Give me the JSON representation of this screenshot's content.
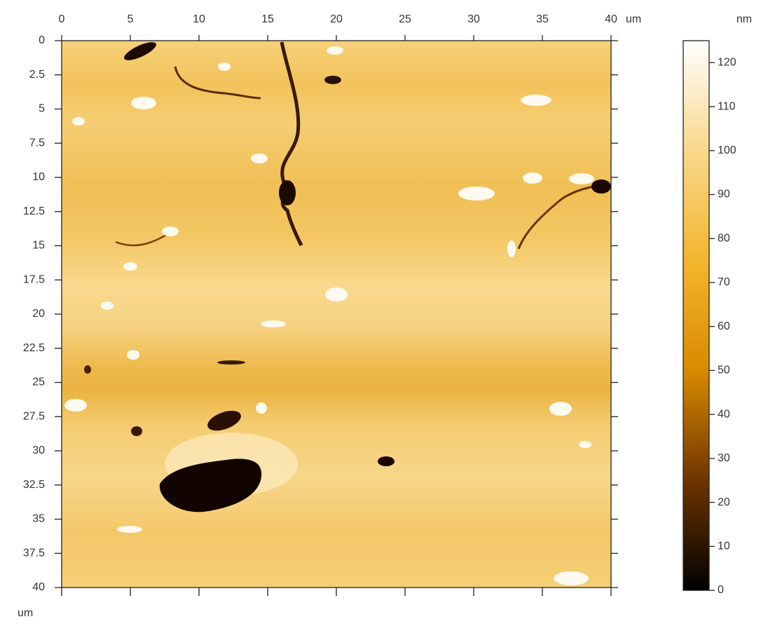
{
  "chart_data": {
    "type": "image",
    "x_unit": "um",
    "y_unit": "um",
    "xlim": [
      0,
      40
    ],
    "xticks": [
      0,
      5,
      10,
      15,
      20,
      25,
      30,
      35,
      40
    ],
    "ylim": [
      0,
      40
    ],
    "y_inverted": true,
    "yticks": [
      0,
      2.5,
      5,
      7.5,
      10,
      12.5,
      15,
      17.5,
      20,
      22.5,
      25,
      27.5,
      30,
      32.5,
      35,
      37.5,
      40
    ],
    "colorbar": {
      "label": "nm",
      "lim": [
        0,
        125
      ],
      "ticks": [
        0,
        10,
        20,
        30,
        40,
        50,
        60,
        70,
        80,
        90,
        100,
        110,
        120
      ],
      "colormap": [
        "#000000",
        "#6e3500",
        "#d98a00",
        "#f3b62e",
        "#f8d88a",
        "#ffffff"
      ]
    }
  }
}
